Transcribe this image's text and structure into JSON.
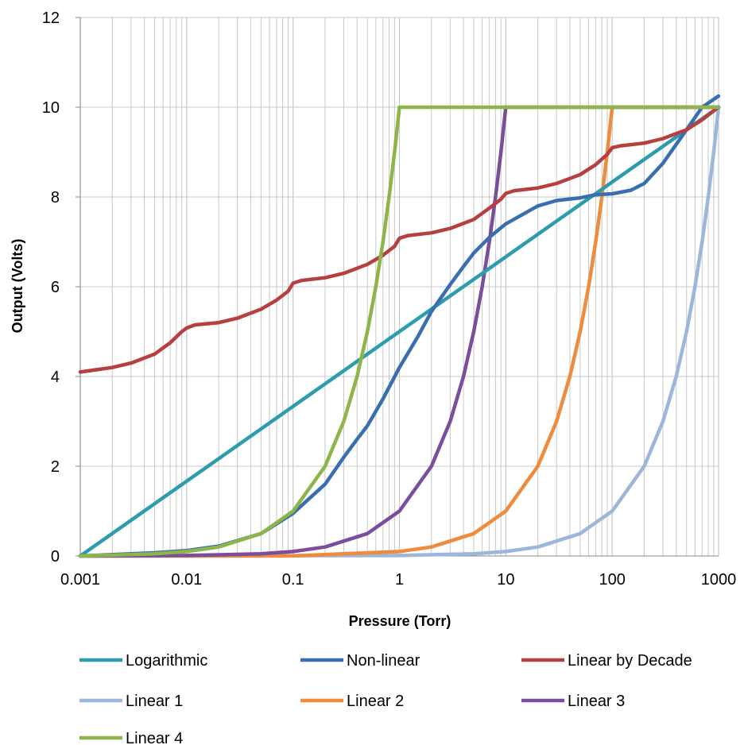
{
  "chart_data": {
    "type": "line",
    "xlabel": "Pressure (Torr)",
    "ylabel": "Output (Volts)",
    "x_scale": "log",
    "xlim": [
      0.001,
      1000
    ],
    "ylim": [
      0,
      12
    ],
    "x_ticks": [
      0.001,
      0.01,
      0.1,
      1,
      10,
      100,
      1000
    ],
    "x_tick_labels": [
      "0.001",
      "0.01",
      "0.1",
      "1",
      "10",
      "100",
      "1000"
    ],
    "y_ticks": [
      0,
      2,
      4,
      6,
      8,
      10,
      12
    ],
    "y_tick_labels": [
      "0",
      "2",
      "4",
      "6",
      "8",
      "10",
      "12"
    ],
    "grid": true,
    "legend_position": "bottom",
    "series": [
      {
        "name": "Logarithmic",
        "color": "#2E9CAF",
        "points": [
          [
            0.001,
            0
          ],
          [
            1000,
            10
          ]
        ]
      },
      {
        "name": "Non-linear",
        "color": "#3A6FAF",
        "points": [
          [
            0.001,
            0
          ],
          [
            0.002,
            0.03
          ],
          [
            0.005,
            0.07
          ],
          [
            0.01,
            0.12
          ],
          [
            0.02,
            0.22
          ],
          [
            0.05,
            0.5
          ],
          [
            0.1,
            0.95
          ],
          [
            0.2,
            1.6
          ],
          [
            0.3,
            2.2
          ],
          [
            0.4,
            2.6
          ],
          [
            0.5,
            2.9
          ],
          [
            0.7,
            3.5
          ],
          [
            1,
            4.2
          ],
          [
            1.5,
            4.9
          ],
          [
            2,
            5.45
          ],
          [
            3,
            6.05
          ],
          [
            4,
            6.45
          ],
          [
            5,
            6.75
          ],
          [
            7,
            7.1
          ],
          [
            10,
            7.4
          ],
          [
            20,
            7.8
          ],
          [
            30,
            7.92
          ],
          [
            50,
            7.98
          ],
          [
            70,
            8.05
          ],
          [
            100,
            8.07
          ],
          [
            150,
            8.15
          ],
          [
            200,
            8.3
          ],
          [
            300,
            8.75
          ],
          [
            500,
            9.5
          ],
          [
            700,
            10.0
          ],
          [
            1000,
            10.25
          ]
        ]
      },
      {
        "name": "Linear by Decade",
        "color": "#B5403F",
        "points": [
          [
            0.001,
            4.1
          ],
          [
            0.002,
            4.2
          ],
          [
            0.003,
            4.3
          ],
          [
            0.005,
            4.5
          ],
          [
            0.007,
            4.75
          ],
          [
            0.009,
            5.0
          ],
          [
            0.01,
            5.08
          ],
          [
            0.012,
            5.15
          ],
          [
            0.02,
            5.2
          ],
          [
            0.03,
            5.3
          ],
          [
            0.05,
            5.5
          ],
          [
            0.07,
            5.7
          ],
          [
            0.09,
            5.9
          ],
          [
            0.1,
            6.08
          ],
          [
            0.12,
            6.14
          ],
          [
            0.2,
            6.2
          ],
          [
            0.3,
            6.3
          ],
          [
            0.5,
            6.5
          ],
          [
            0.7,
            6.7
          ],
          [
            0.9,
            6.9
          ],
          [
            1,
            7.08
          ],
          [
            1.2,
            7.14
          ],
          [
            2,
            7.2
          ],
          [
            3,
            7.3
          ],
          [
            5,
            7.5
          ],
          [
            7,
            7.75
          ],
          [
            9,
            7.95
          ],
          [
            10,
            8.08
          ],
          [
            12,
            8.14
          ],
          [
            20,
            8.2
          ],
          [
            30,
            8.3
          ],
          [
            50,
            8.5
          ],
          [
            70,
            8.72
          ],
          [
            90,
            8.95
          ],
          [
            100,
            9.1
          ],
          [
            120,
            9.14
          ],
          [
            200,
            9.2
          ],
          [
            300,
            9.3
          ],
          [
            500,
            9.5
          ],
          [
            700,
            9.72
          ],
          [
            1000,
            10
          ]
        ]
      },
      {
        "name": "Linear 1",
        "color": "#9DB6DB",
        "points": [
          [
            0.001,
            0
          ],
          [
            1,
            0.01
          ],
          [
            5,
            0.05
          ],
          [
            10,
            0.1
          ],
          [
            20,
            0.2
          ],
          [
            50,
            0.5
          ],
          [
            100,
            1
          ],
          [
            200,
            2
          ],
          [
            300,
            3
          ],
          [
            400,
            4
          ],
          [
            500,
            5
          ],
          [
            600,
            6
          ],
          [
            700,
            7
          ],
          [
            800,
            8
          ],
          [
            900,
            9
          ],
          [
            1000,
            10
          ]
        ]
      },
      {
        "name": "Linear 2",
        "color": "#EE8B3C",
        "points": [
          [
            0.001,
            0
          ],
          [
            0.1,
            0.001
          ],
          [
            1,
            0.1
          ],
          [
            2,
            0.2
          ],
          [
            5,
            0.5
          ],
          [
            10,
            1
          ],
          [
            20,
            2
          ],
          [
            30,
            3
          ],
          [
            40,
            4
          ],
          [
            50,
            5
          ],
          [
            60,
            6
          ],
          [
            70,
            7
          ],
          [
            80,
            8
          ],
          [
            90,
            9
          ],
          [
            100,
            10
          ],
          [
            1000,
            10
          ]
        ]
      },
      {
        "name": "Linear 3",
        "color": "#7A4E9C",
        "points": [
          [
            0.001,
            0
          ],
          [
            0.01,
            0.01
          ],
          [
            0.05,
            0.05
          ],
          [
            0.1,
            0.1
          ],
          [
            0.2,
            0.2
          ],
          [
            0.5,
            0.5
          ],
          [
            1,
            1
          ],
          [
            2,
            2
          ],
          [
            3,
            3
          ],
          [
            4,
            4
          ],
          [
            5,
            5
          ],
          [
            6,
            6
          ],
          [
            7,
            7
          ],
          [
            8,
            8
          ],
          [
            9,
            9
          ],
          [
            10,
            10
          ],
          [
            1000,
            10
          ]
        ]
      },
      {
        "name": "Linear 4",
        "color": "#8DB54A",
        "points": [
          [
            0.001,
            0
          ],
          [
            0.002,
            0.02
          ],
          [
            0.005,
            0.05
          ],
          [
            0.01,
            0.1
          ],
          [
            0.02,
            0.2
          ],
          [
            0.05,
            0.5
          ],
          [
            0.1,
            1
          ],
          [
            0.2,
            2
          ],
          [
            0.3,
            3
          ],
          [
            0.4,
            4
          ],
          [
            0.5,
            5
          ],
          [
            0.6,
            6
          ],
          [
            0.7,
            7
          ],
          [
            0.8,
            8
          ],
          [
            0.9,
            9
          ],
          [
            1,
            10
          ],
          [
            1000,
            10
          ]
        ]
      }
    ]
  }
}
